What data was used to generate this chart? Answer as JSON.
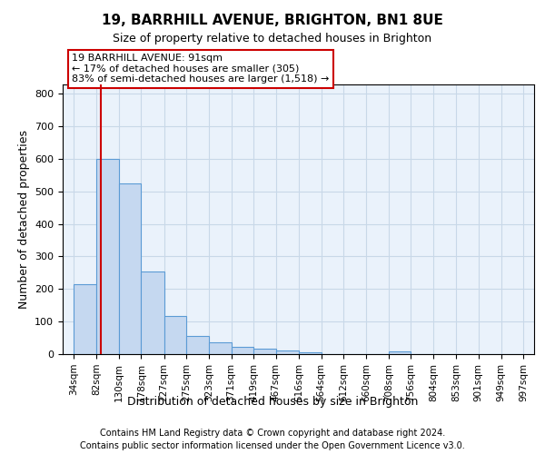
{
  "title1": "19, BARRHILL AVENUE, BRIGHTON, BN1 8UE",
  "title2": "Size of property relative to detached houses in Brighton",
  "xlabel": "Distribution of detached houses by size in Brighton",
  "ylabel": "Number of detached properties",
  "footer1": "Contains HM Land Registry data © Crown copyright and database right 2024.",
  "footer2": "Contains public sector information licensed under the Open Government Licence v3.0.",
  "bar_left_edges": [
    34,
    82,
    130,
    178,
    227,
    275,
    323,
    371,
    419,
    467,
    516,
    564,
    612,
    660,
    708,
    756,
    804,
    853,
    901,
    949
  ],
  "bar_heights": [
    215,
    600,
    525,
    255,
    118,
    55,
    35,
    22,
    17,
    10,
    6,
    0,
    0,
    0,
    7,
    0,
    0,
    0,
    0,
    0
  ],
  "bar_widths": [
    48,
    48,
    48,
    49,
    48,
    48,
    48,
    48,
    48,
    49,
    48,
    48,
    48,
    48,
    48,
    48,
    49,
    48,
    48,
    48
  ],
  "x_tick_labels": [
    "34sqm",
    "82sqm",
    "130sqm",
    "178sqm",
    "227sqm",
    "275sqm",
    "323sqm",
    "371sqm",
    "419sqm",
    "467sqm",
    "516sqm",
    "564sqm",
    "612sqm",
    "660sqm",
    "708sqm",
    "756sqm",
    "804sqm",
    "853sqm",
    "901sqm",
    "949sqm",
    "997sqm"
  ],
  "x_tick_positions": [
    34,
    82,
    130,
    178,
    227,
    275,
    323,
    371,
    419,
    467,
    516,
    564,
    612,
    660,
    708,
    756,
    804,
    853,
    901,
    949,
    997
  ],
  "bar_color": "#C5D8F0",
  "bar_edge_color": "#5B9BD5",
  "property_line_x": 91,
  "property_line_color": "#CC0000",
  "annotation_line1": "19 BARRHILL AVENUE: 91sqm",
  "annotation_line2": "← 17% of detached houses are smaller (305)",
  "annotation_line3": "83% of semi-detached houses are larger (1,518) →",
  "annotation_box_color": "#CC0000",
  "ylim": [
    0,
    830
  ],
  "xlim": [
    10,
    1020
  ],
  "ax_facecolor": "#EAF2FB",
  "background_color": "#FFFFFF",
  "grid_color": "#C8D8E8",
  "title1_fontsize": 11,
  "title2_fontsize": 9,
  "ylabel_fontsize": 9,
  "xlabel_fontsize": 9,
  "footer_fontsize": 7,
  "tick_fontsize": 7.5,
  "annot_fontsize": 8
}
